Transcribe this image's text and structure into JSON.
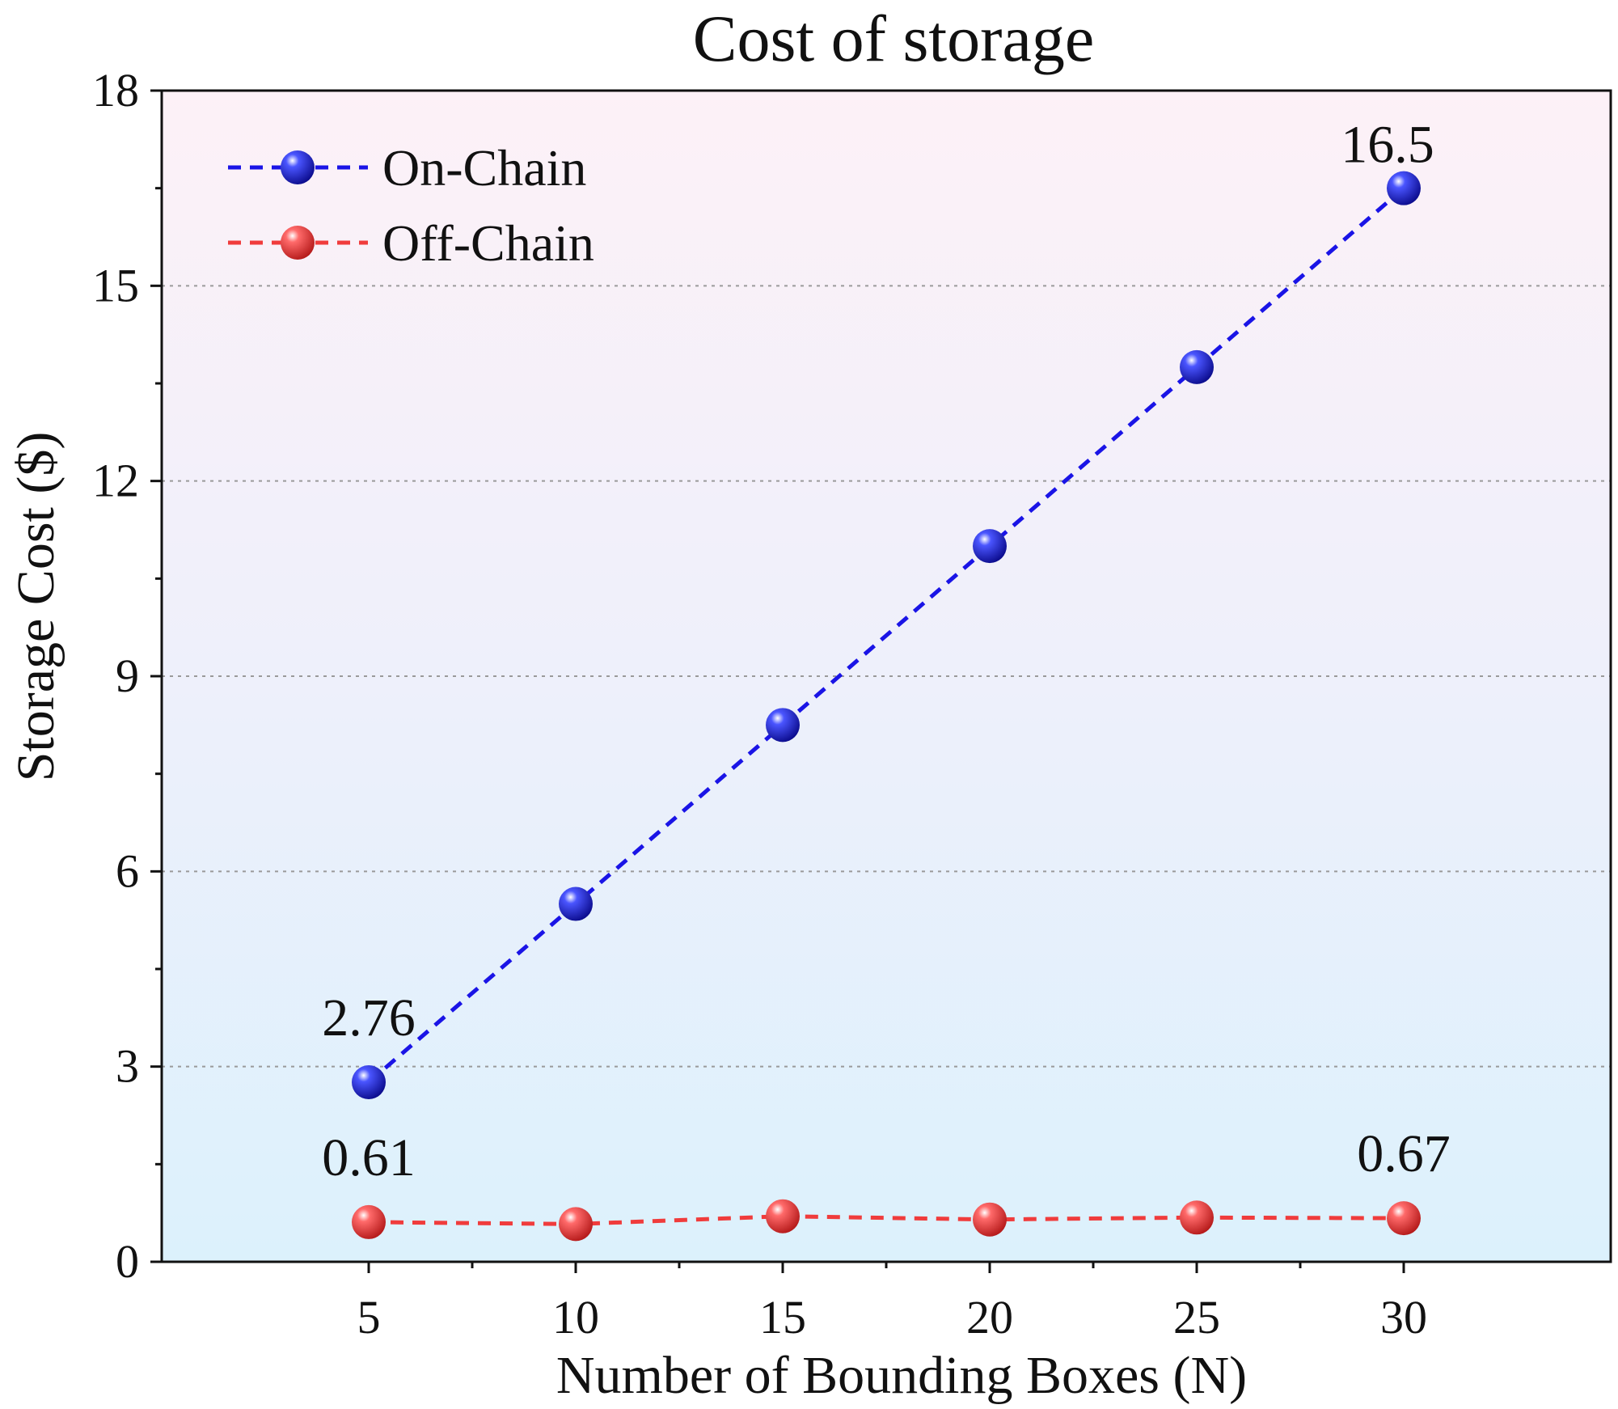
{
  "chart_data": {
    "type": "line",
    "title": "Cost of storage",
    "xlabel": "Number of Bounding Boxes (N)",
    "ylabel": "Storage Cost ($)",
    "x": [
      5,
      10,
      15,
      20,
      25,
      30
    ],
    "xlim": [
      0,
      35
    ],
    "ylim": [
      0,
      18
    ],
    "yticks": [
      0,
      3,
      6,
      9,
      12,
      15,
      18
    ],
    "grid": true,
    "legend": "top-left",
    "series": [
      {
        "name": "On-Chain",
        "color": "#1a14e6",
        "values": [
          2.76,
          5.5,
          8.25,
          11.0,
          13.75,
          16.5
        ]
      },
      {
        "name": "Off-Chain",
        "color": "#f03c3c",
        "values": [
          0.61,
          0.58,
          0.7,
          0.65,
          0.68,
          0.67
        ]
      }
    ],
    "annotations": [
      {
        "series": 0,
        "index": 0,
        "text": "2.76"
      },
      {
        "series": 0,
        "index": 5,
        "text": "16.5"
      },
      {
        "series": 1,
        "index": 0,
        "text": "0.61"
      },
      {
        "series": 1,
        "index": 5,
        "text": "0.67"
      }
    ]
  }
}
